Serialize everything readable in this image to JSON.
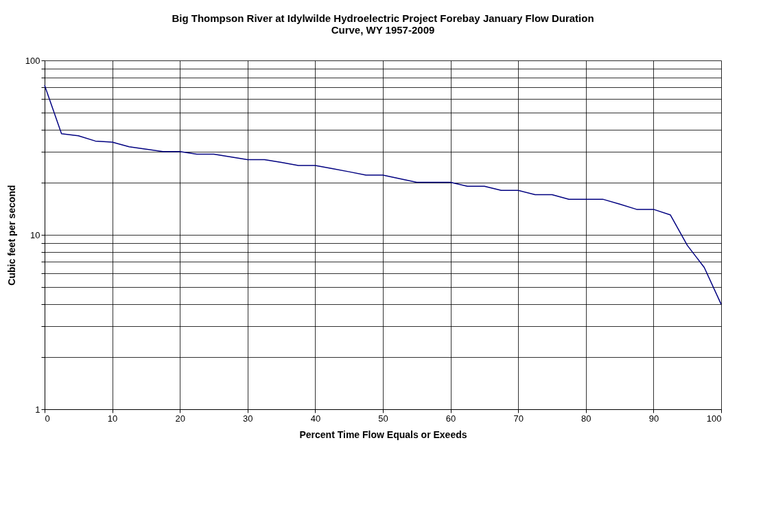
{
  "chart_data": {
    "type": "line",
    "title": [
      "Big Thompson River at Idylwilde Hydroelectric Project Forebay January Flow Duration",
      "Curve, WY 1957-2009"
    ],
    "xlabel": "Percent Time Flow Equals or Exeeds",
    "ylabel": "Cubic feet per second",
    "x": [
      0,
      2.5,
      5,
      7.5,
      10,
      12.5,
      15,
      17.5,
      20,
      22.5,
      25,
      27.5,
      30,
      32.5,
      35,
      37.5,
      40,
      42.5,
      45,
      47.5,
      50,
      52.5,
      55,
      57.5,
      60,
      62.5,
      65,
      67.5,
      70,
      72.5,
      75,
      77.5,
      80,
      82.5,
      85,
      87.5,
      90,
      92.5,
      95,
      97.5,
      100
    ],
    "series": [
      {
        "color": "#000080",
        "values": [
          72,
          38,
          37,
          34.5,
          34,
          32,
          31,
          30,
          30,
          29,
          29,
          28,
          27,
          27,
          26,
          25,
          25,
          24,
          23,
          22,
          22,
          21,
          20,
          20,
          20,
          19,
          19,
          18,
          18,
          17,
          17,
          16,
          16,
          16,
          15,
          14,
          14,
          13,
          8.7,
          6.5,
          4
        ]
      }
    ],
    "xlim": [
      0,
      100
    ],
    "xticks": [
      0,
      10,
      20,
      30,
      40,
      50,
      60,
      70,
      80,
      90,
      100
    ],
    "ylim": [
      1,
      100
    ],
    "log": "y",
    "yticks": [
      1,
      {
        "value": 2,
        "label": null
      },
      {
        "value": 3,
        "label": null
      },
      {
        "value": 4,
        "label": null
      },
      {
        "value": 5,
        "label": null
      },
      {
        "value": 6,
        "label": null
      },
      {
        "value": 7,
        "label": null
      },
      {
        "value": 8,
        "label": null
      },
      {
        "value": 9,
        "label": null
      },
      10,
      {
        "value": 20,
        "label": null
      },
      {
        "value": 30,
        "label": null
      },
      {
        "value": 40,
        "label": null
      },
      {
        "value": 50,
        "label": null
      },
      {
        "value": 60,
        "label": null
      },
      {
        "value": 70,
        "label": null
      },
      {
        "value": 80,
        "label": null
      },
      {
        "value": 90,
        "label": null
      },
      100
    ],
    "grid": true,
    "legend": false,
    "marker": "none",
    "line_style": "solid"
  }
}
